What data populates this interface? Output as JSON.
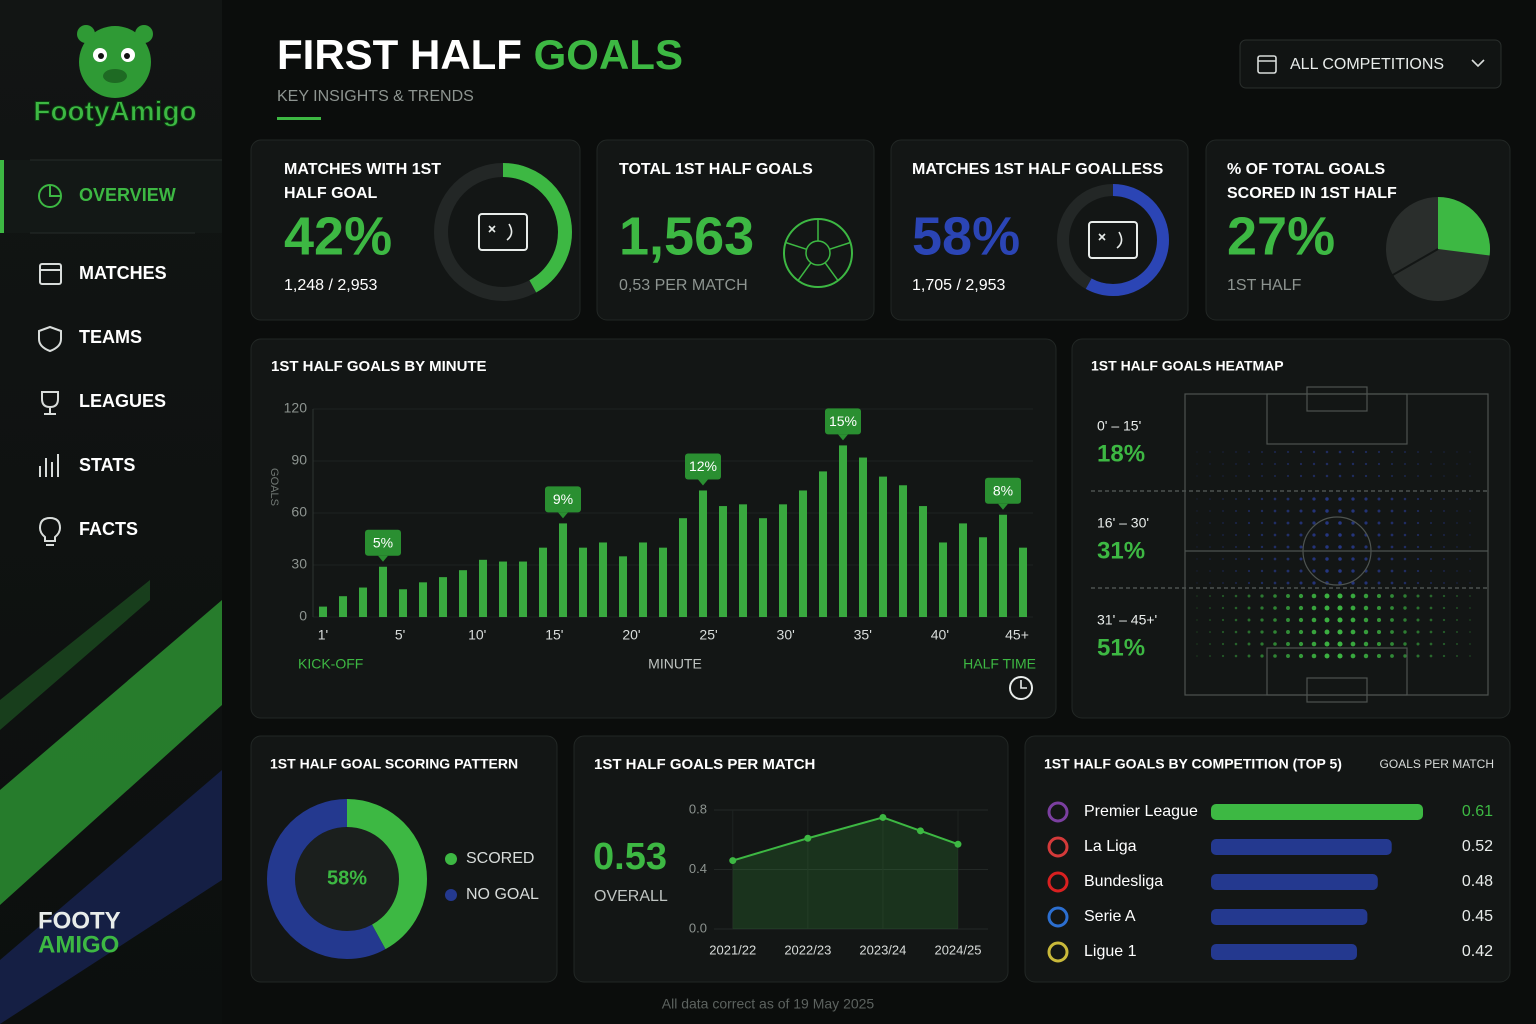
{
  "sidebar": {
    "logo": "FootyAmigo",
    "nav": [
      "OVERVIEW",
      "MATCHES",
      "TEAMS",
      "LEAGUES",
      "STATS",
      "FACTS"
    ],
    "active": 0,
    "footer": [
      "FOOTY",
      "AMIGO"
    ]
  },
  "header": {
    "title": "FIRST HALF",
    "title_accent": "GOALS",
    "subtitle": "KEY INSIGHTS & TRENDS",
    "filter": "ALL COMPETITIONS"
  },
  "kpis": [
    {
      "title": [
        "MATCHES WITH 1ST",
        "HALF GOAL"
      ],
      "value": 42,
      "value_label": "42%",
      "detail": "1,248 / 2,953",
      "color": "#3db843",
      "gauge": "ring"
    },
    {
      "title": [
        "TOTAL 1ST HALF GOALS"
      ],
      "value": 1563,
      "value_label": "1,563",
      "detail": "0,53 PER MATCH",
      "color": "#3db843",
      "gauge": "ball"
    },
    {
      "title": [
        "MATCHES 1ST HALF GOALLESS"
      ],
      "value": 58,
      "value_label": "58%",
      "detail": "1,705 / 2,953",
      "color": "#2b45b5",
      "gauge": "ring"
    },
    {
      "title": [
        "% OF TOTAL GOALS",
        "SCORED IN 1ST HALF"
      ],
      "value": 27,
      "value_label": "27%",
      "detail": "1ST HALF",
      "color": "#3db843",
      "gauge": "pie"
    }
  ],
  "minute_chart": {
    "type": "bar",
    "title": "1ST HALF GOALS BY MINUTE",
    "ylabel": "GOALS",
    "xlabel": "MINUTE",
    "start_label": "KICK-OFF",
    "end_label": "HALF TIME",
    "values": [
      6,
      12,
      17,
      29,
      16,
      20,
      23,
      27,
      33,
      32,
      32,
      40,
      54,
      40,
      43,
      35,
      43,
      40,
      57,
      73,
      64,
      65,
      57,
      65,
      73,
      84,
      99,
      92,
      81,
      76,
      64,
      43,
      54,
      46,
      59,
      40
    ],
    "xticks": [
      "1'",
      "5'",
      "10'",
      "15'",
      "20'",
      "25'",
      "30'",
      "35'",
      "40'",
      "45+"
    ],
    "ylim": [
      0,
      120
    ],
    "yticks": [
      0,
      30,
      60,
      90,
      120
    ],
    "color": "#39a93f",
    "grid": true,
    "annotations": [
      {
        "index": 3,
        "label": "5%"
      },
      {
        "index": 12,
        "label": "9%"
      },
      {
        "index": 19,
        "label": "12%"
      },
      {
        "index": 26,
        "label": "15%"
      },
      {
        "index": 34,
        "label": "8%"
      }
    ]
  },
  "heatmap": {
    "title": "1ST HALF GOALS HEATMAP",
    "segments": [
      {
        "range": "0' – 15'",
        "value": 18,
        "value_label": "18%"
      },
      {
        "range": "16' – 30'",
        "value": 31,
        "value_label": "31%"
      },
      {
        "range": "31' – 45+'",
        "value": 51,
        "value_label": "51%"
      }
    ]
  },
  "pattern": {
    "type": "donut",
    "title": "1ST HALF GOAL SCORING PATTERN",
    "center_label": "58%",
    "series": [
      {
        "name": "SCORED",
        "value": 42,
        "color": "#3db843"
      },
      {
        "name": "NO GOAL",
        "value": 58,
        "color": "#24398f"
      }
    ]
  },
  "per_match": {
    "type": "line",
    "title": "1ST HALF GOALS PER MATCH",
    "overall": "0.53",
    "overall_label": "OVERALL",
    "x": [
      0,
      1,
      2,
      2.5,
      3
    ],
    "values": [
      0.46,
      0.61,
      0.75,
      0.66,
      0.57
    ],
    "xlim": [
      -0.25,
      3.4
    ],
    "xticks": [
      {
        "value": 0,
        "label": "2021/22"
      },
      {
        "value": 1,
        "label": "2022/23"
      },
      {
        "value": 2,
        "label": "2023/24"
      },
      {
        "value": 3,
        "label": "2024/25"
      }
    ],
    "ylim": [
      0,
      0.8
    ],
    "yticks": [
      {
        "value": 0,
        "label": "0.0"
      },
      0.4,
      0.8
    ],
    "color": "#3db843",
    "grid": true
  },
  "competitions": {
    "type": "hbar",
    "title": "1ST HALF GOALS BY COMPETITION (TOP 5)",
    "value_header": "GOALS PER MATCH",
    "names": [
      "Premier League",
      "La Liga",
      "Bundesliga",
      "Serie A",
      "Ligue 1"
    ],
    "values": [
      0.61,
      0.52,
      0.48,
      0.45,
      0.42
    ],
    "colors": [
      "#3db843",
      "#24398f",
      "#24398f",
      "#24398f",
      "#24398f"
    ]
  },
  "footer": "All data correct as of 19 May 2025"
}
